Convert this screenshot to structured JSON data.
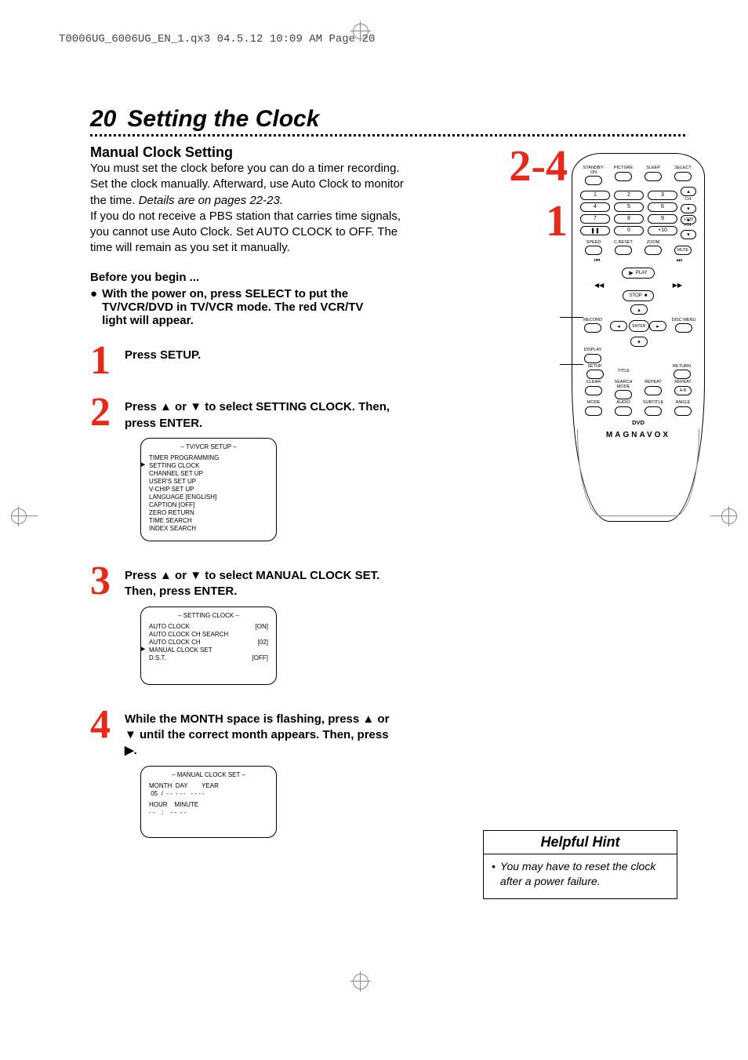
{
  "colors": {
    "accent": "#e72919",
    "text": "#000000",
    "bg": "#ffffff",
    "crop": "#888888"
  },
  "header_line": "T0006UG_6006UG_EN_1.qx3  04.5.12  10:09 AM  Page 20",
  "page_number": "20",
  "page_title": "Setting the Clock",
  "subheading": "Manual Clock Setting",
  "intro_p1a": "You must set the clock before you can do a timer recording. Set the clock manually. Afterward, use Auto Clock to monitor the time. ",
  "intro_p1b_italic": "Details are on pages 22-23.",
  "intro_p2": "If you do not receive a PBS station that carries time signals, you cannot use Auto Clock. Set AUTO CLOCK to OFF. The time will remain as you set it manually.",
  "before_begin": "Before you begin ...",
  "before_bullet": "With the power on, press SELECT to put the TV/VCR/DVD in TV/VCR mode. The red VCR/TV light will appear.",
  "steps": {
    "s1": {
      "num": "1",
      "text": "Press SETUP."
    },
    "s2": {
      "num": "2",
      "text": "Press ▲ or ▼ to select SETTING CLOCK. Then, press ENTER."
    },
    "s3": {
      "num": "3",
      "text": "Press ▲ or ▼ to select MANUAL CLOCK SET. Then, press ENTER."
    },
    "s4": {
      "num": "4",
      "text": "While the MONTH space is flashing, press ▲ or ▼ until the correct month appears. Then, press ▶."
    }
  },
  "osd1": {
    "title": "– TV/VCR SETUP –",
    "lines": [
      "TIMER PROGRAMMING",
      "SETTING CLOCK",
      "CHANNEL SET UP",
      "USER'S SET UP",
      "V-CHIP SET UP",
      "LANGUAGE  [ENGLISH]",
      "CAPTION  [OFF]",
      "ZERO RETURN",
      "TIME SEARCH",
      "INDEX SEARCH"
    ],
    "arrow_index": 1
  },
  "osd2": {
    "title": "– SETTING CLOCK –",
    "rows": [
      {
        "l": "AUTO CLOCK",
        "r": "[ON]"
      },
      {
        "l": "AUTO CLOCK CH SEARCH",
        "r": ""
      },
      {
        "l": "AUTO CLOCK CH",
        "r": "[02]"
      },
      {
        "l": "MANUAL CLOCK SET",
        "r": ""
      },
      {
        "l": "D.S.T.",
        "r": "[OFF]"
      }
    ],
    "arrow_index": 3
  },
  "osd3": {
    "title": "– MANUAL CLOCK SET –",
    "header": "MONTH  DAY        YEAR",
    "date_line": " 05  /  - -  - - -   - - - -",
    "time_header": "HOUR    MINUTE",
    "time_line": "- -    :    - -  - -"
  },
  "callout_24": "2-4",
  "callout_1": "1",
  "remote": {
    "top_labels": [
      "STANDBY-ON",
      "PICTURE",
      "SLEEP",
      "SELECT"
    ],
    "numbers": [
      "1",
      "2",
      "3",
      "4",
      "5",
      "6",
      "7",
      "8",
      "9",
      "",
      "0",
      "+10"
    ],
    "plus100": "+100",
    "ch": "CH.",
    "vol": "VOL.",
    "row_speed": [
      "SPEED",
      "C.RESET",
      "ZOOM"
    ],
    "mute": "MUTE",
    "play": "PLAY",
    "stop": "STOP",
    "record": "RECORD",
    "disc_menu": "DISC MENU",
    "display": "DISPLAY",
    "enter": "ENTER",
    "setup": "SETUP",
    "title": "TITLE",
    "return": "RETURN",
    "row_clear": [
      "CLEAR",
      "SEARCH MODE",
      "REPEAT",
      "REPEAT"
    ],
    "ab": "A-B",
    "row_mode": [
      "MODE",
      "AUDIO",
      "SUBTITLE",
      "ANGLE"
    ],
    "dvd": "DVD",
    "brand": "MAGNAVOX"
  },
  "hint": {
    "title": "Helpful Hint",
    "body": "You may have to reset the clock after a power failure."
  }
}
